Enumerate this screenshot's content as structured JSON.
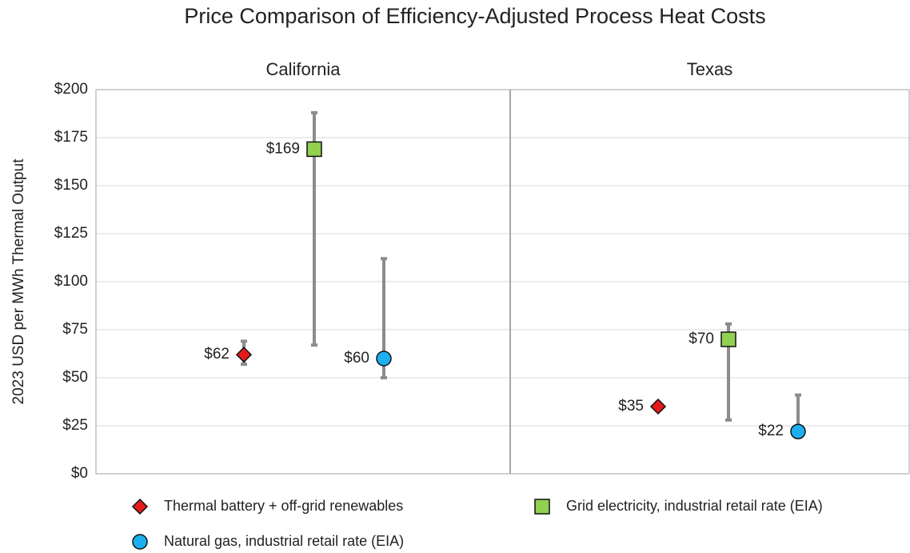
{
  "chart_data": {
    "type": "range",
    "title": "Price Comparison of Efficiency-Adjusted Process Heat Costs",
    "ylabel": "2023 USD per MWh Thermal Output",
    "panels": [
      "California",
      "Texas"
    ],
    "ylim": [
      0,
      200
    ],
    "yticks": [
      {
        "value": 0,
        "label": "$0"
      },
      {
        "value": 25,
        "label": "$25"
      },
      {
        "value": 50,
        "label": "$50"
      },
      {
        "value": 75,
        "label": "$75"
      },
      {
        "value": 100,
        "label": "$100"
      },
      {
        "value": 125,
        "label": "$125"
      },
      {
        "value": 150,
        "label": "$150"
      },
      {
        "value": 175,
        "label": "$175"
      },
      {
        "value": 200,
        "label": "$200"
      }
    ],
    "grid": true,
    "series": [
      {
        "name": "Thermal battery + off-grid renewables",
        "color": "#e41a1c",
        "marker": "diamond",
        "values": [
          62,
          35
        ],
        "value_labels": [
          "$62",
          "$35"
        ],
        "low": [
          57,
          34
        ],
        "high": [
          69,
          37
        ]
      },
      {
        "name": "Grid electricity, industrial retail rate (EIA)",
        "color": "#92d050",
        "marker": "square",
        "values": [
          169,
          70
        ],
        "value_labels": [
          "$169",
          "$70"
        ],
        "low": [
          67,
          28
        ],
        "high": [
          188,
          78
        ]
      },
      {
        "name": "Natural gas, industrial retail rate (EIA)",
        "color": "#1cb0f0",
        "marker": "circle",
        "values": [
          60,
          22
        ],
        "value_labels": [
          "$60",
          "$22"
        ],
        "low": [
          50,
          20
        ],
        "high": [
          112,
          41
        ]
      }
    ]
  }
}
